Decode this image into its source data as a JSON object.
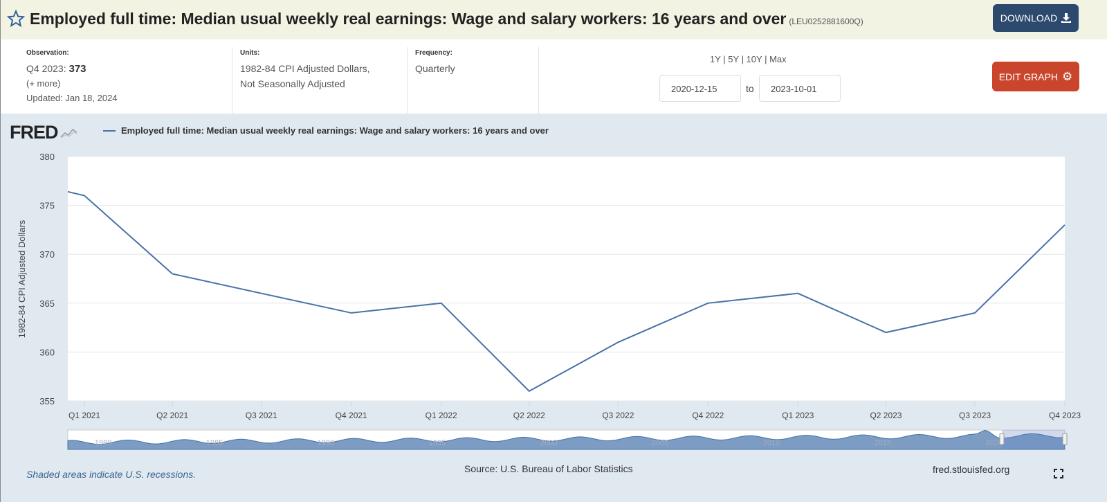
{
  "header": {
    "title": "Employed full time: Median usual weekly real earnings: Wage and salary workers: 16 years and over",
    "series_id": "(LEU0252881600Q)",
    "download_label": "DOWNLOAD",
    "download_icon": "download-icon",
    "star_icon": "star-outline-icon"
  },
  "meta": {
    "observation_label": "Observation:",
    "observation_period": "Q4 2023:",
    "observation_value": "373",
    "more": "(+ more)",
    "updated": "Updated: Jan 18, 2024",
    "units_label": "Units:",
    "units_line1": "1982-84 CPI Adjusted Dollars,",
    "units_line2": "Not Seasonally Adjusted",
    "frequency_label": "Frequency:",
    "frequency": "Quarterly"
  },
  "controls": {
    "ranges": [
      "1Y",
      "5Y",
      "10Y",
      "Max"
    ],
    "start_date": "2020-12-15",
    "to": "to",
    "end_date": "2023-10-01",
    "edit_label": "EDIT GRAPH",
    "edit_icon": "gear-icon"
  },
  "colors": {
    "line": "#4572a7",
    "download": "#2d4a6e",
    "edit": "#c9462c",
    "header_bg": "#f2f3e3",
    "chart_bg": "#e1e9f0"
  },
  "chart_data": {
    "type": "line",
    "logo": "FRED",
    "legend": "Employed full time: Median usual weekly real earnings: Wage and salary workers: 16 years and over",
    "ylabel": "1982-84 CPI Adjusted Dollars",
    "ylim": [
      355,
      380
    ],
    "yticks": [
      355,
      360,
      365,
      370,
      375,
      380
    ],
    "xlim": [
      "2020-12-15",
      "2023-10-01"
    ],
    "xticks": [
      {
        "date": "2021-01-01",
        "label": "Q1 2021"
      },
      {
        "date": "2021-04-01",
        "label": "Q2 2021"
      },
      {
        "date": "2021-07-01",
        "label": "Q3 2021"
      },
      {
        "date": "2021-10-01",
        "label": "Q4 2021"
      },
      {
        "date": "2022-01-01",
        "label": "Q1 2022"
      },
      {
        "date": "2022-04-01",
        "label": "Q2 2022"
      },
      {
        "date": "2022-07-01",
        "label": "Q3 2022"
      },
      {
        "date": "2022-10-01",
        "label": "Q4 2022"
      },
      {
        "date": "2023-01-01",
        "label": "Q1 2023"
      },
      {
        "date": "2023-04-01",
        "label": "Q2 2023"
      },
      {
        "date": "2023-07-01",
        "label": "Q3 2023"
      },
      {
        "date": "2023-10-01",
        "label": "Q4 2023"
      }
    ],
    "series": [
      {
        "x": [
          "2020-12-15",
          "2021-01-01",
          "2021-04-01",
          "2021-07-01",
          "2021-10-01",
          "2022-01-01",
          "2022-04-01",
          "2022-07-01",
          "2022-10-01",
          "2023-01-01",
          "2023-04-01",
          "2023-07-01",
          "2023-10-01"
        ],
        "values": [
          376.4,
          376,
          368,
          366,
          364,
          365,
          356,
          361,
          365,
          366,
          362,
          364,
          373
        ]
      }
    ],
    "grid": true,
    "navigator_labels": [
      "1980",
      "1985",
      "1990",
      "1995",
      "2000",
      "2005",
      "2010",
      "2015",
      "2020"
    ]
  },
  "footer": {
    "recessions": "Shaded areas indicate U.S. recessions.",
    "source": "Source: U.S. Bureau of Labor Statistics",
    "site": "fred.stlouisfed.org",
    "fullscreen_icon": "fullscreen-icon"
  }
}
